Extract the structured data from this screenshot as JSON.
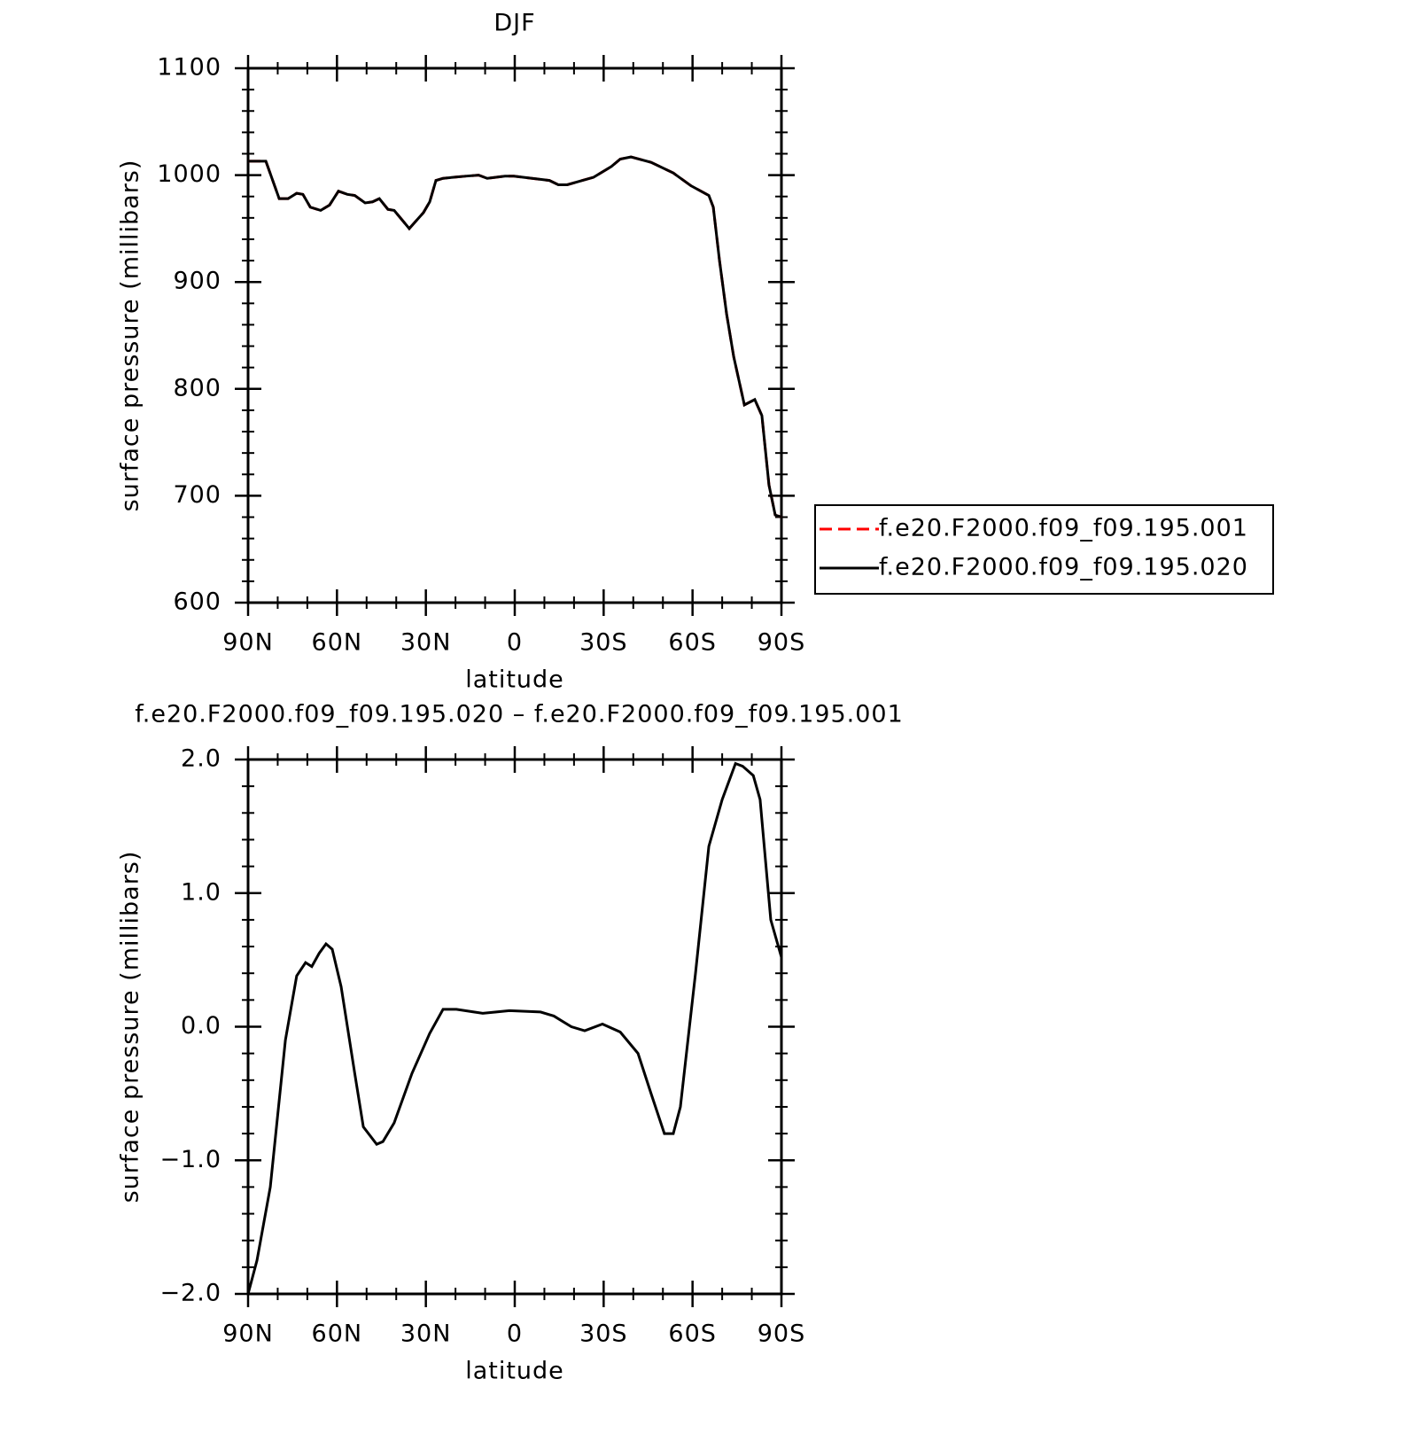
{
  "chart_data": [
    {
      "type": "line",
      "title": "DJF",
      "xlabel": "latitude",
      "ylabel": "surface pressure (millibars)",
      "x": [
        90,
        84,
        79.5,
        76.5,
        73.6,
        71.5,
        69,
        65.5,
        62.5,
        59.5,
        56.5,
        54,
        50.5,
        48,
        45.7,
        42.8,
        40.7,
        35.6,
        30.8,
        28.7,
        26.6,
        24.2,
        20.6,
        16.7,
        12.2,
        9.3,
        3.3,
        0.3,
        -8.7,
        -11.7,
        -14.7,
        -17.7,
        -26.6,
        -32.6,
        -35.6,
        -39.2,
        -46,
        -53.5,
        -59.5,
        -65.5,
        -67,
        -69.1,
        -71.5,
        -73.9,
        -77.5,
        -81,
        -83.4,
        -85.8,
        -87.9,
        -90
      ],
      "xlim": [
        90,
        -90
      ],
      "xticks": [
        {
          "value": 90,
          "label": "90N"
        },
        {
          "value": 60,
          "label": "60N"
        },
        {
          "value": 30,
          "label": "30N"
        },
        0,
        {
          "value": -30,
          "label": "30S"
        },
        {
          "value": -60,
          "label": "60S"
        },
        {
          "value": -90,
          "label": "90S"
        }
      ],
      "ylim": [
        600,
        1100
      ],
      "yticks": [
        600,
        700,
        800,
        900,
        1000,
        1100
      ],
      "series": [
        {
          "name": "f.e20.F2000.f09_f09.195.001",
          "color": "#ff0000",
          "linestyle": "dashed",
          "values": [
            1013,
            1013,
            978,
            978,
            983,
            982,
            970,
            967,
            972,
            985,
            982,
            981,
            974,
            975,
            978,
            968,
            967,
            950,
            965,
            975,
            995,
            997,
            998,
            999,
            1000,
            997,
            999,
            999,
            996,
            995,
            991,
            991,
            998,
            1008,
            1015,
            1017,
            1012,
            1002,
            990,
            981,
            970,
            920,
            870,
            830,
            785,
            790,
            775,
            710,
            682,
            680
          ]
        },
        {
          "name": "f.e20.F2000.f09_f09.195.020",
          "color": "#000000",
          "linestyle": "solid",
          "values": [
            1013,
            1013,
            978,
            978,
            983,
            982,
            970,
            967,
            972,
            985,
            982,
            981,
            974,
            975,
            978,
            968,
            967,
            950,
            965,
            975,
            995,
            997,
            998,
            999,
            1000,
            997,
            999,
            999,
            996,
            995,
            991,
            991,
            998,
            1008,
            1015,
            1017,
            1012,
            1002,
            990,
            981,
            970,
            920,
            870,
            830,
            785,
            790,
            775,
            710,
            682,
            680
          ]
        }
      ],
      "legend": "right"
    },
    {
      "type": "line",
      "title": "f.e20.F2000.f09_f09.195.020 – f.e20.F2000.f09_f09.195.001",
      "xlabel": "latitude",
      "ylabel": "surface pressure (millibars)",
      "x": [
        90,
        87,
        82.5,
        77.4,
        73.6,
        70.6,
        68.5,
        66,
        63.7,
        61.6,
        58.6,
        54,
        51.1,
        46.6,
        44.5,
        40.7,
        34.7,
        28.7,
        24.2,
        19.7,
        10.8,
        1.8,
        -8.7,
        -13.2,
        -19.1,
        -23.6,
        -29.6,
        -35.6,
        -41.6,
        -46,
        -50.5,
        -53.5,
        -55.9,
        -61,
        -65.5,
        -70,
        -74.5,
        -76.9,
        -80.5,
        -82.8,
        -86.4,
        -90
      ],
      "xlim": [
        90,
        -90
      ],
      "xticks": [
        {
          "value": 90,
          "label": "90N"
        },
        {
          "value": 60,
          "label": "60N"
        },
        {
          "value": 30,
          "label": "30N"
        },
        0,
        {
          "value": -30,
          "label": "30S"
        },
        {
          "value": -60,
          "label": "60S"
        },
        {
          "value": -90,
          "label": "90S"
        }
      ],
      "ylim": [
        -2,
        2
      ],
      "yticks": [
        {
          "value": -2,
          "label": "−2.0"
        },
        {
          "value": -1,
          "label": "−1.0"
        },
        {
          "value": 0,
          "label": "0.0"
        },
        {
          "value": 1,
          "label": "1.0"
        },
        {
          "value": 2,
          "label": "2.0"
        }
      ],
      "series": [
        {
          "color": "#000000",
          "linestyle": "solid",
          "values": [
            -2.0,
            -1.75,
            -1.2,
            -0.1,
            0.38,
            0.48,
            0.45,
            0.55,
            0.62,
            0.58,
            0.3,
            -0.35,
            -0.75,
            -0.88,
            -0.86,
            -0.72,
            -0.35,
            -0.05,
            0.13,
            0.13,
            0.1,
            0.12,
            0.11,
            0.08,
            0.0,
            -0.03,
            0.02,
            -0.04,
            -0.2,
            -0.5,
            -0.8,
            -0.8,
            -0.6,
            0.4,
            1.35,
            1.7,
            1.97,
            1.95,
            1.88,
            1.7,
            0.8,
            0.52
          ]
        }
      ]
    }
  ]
}
